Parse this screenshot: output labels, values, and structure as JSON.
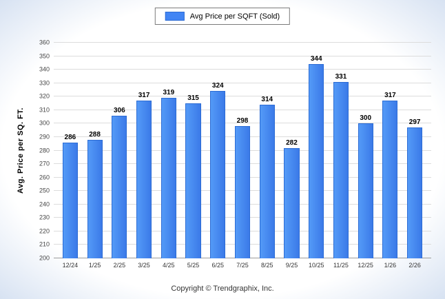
{
  "legend": {
    "label": "Avg Price per SQFT (Sold)",
    "swatch_color": "#4285f4"
  },
  "y_axis": {
    "title": "Avg. Price per SQ. FT.",
    "min": 200,
    "max": 360,
    "step": 10
  },
  "footer": {
    "text": "Copyright © Trendgraphix, Inc."
  },
  "chart_data": {
    "type": "bar",
    "title": "Avg Price per SQFT (Sold)",
    "categories": [
      "12/24",
      "1/25",
      "2/25",
      "3/25",
      "4/25",
      "5/25",
      "6/25",
      "7/25",
      "8/25",
      "9/25",
      "10/25",
      "11/25",
      "12/25",
      "1/26",
      "2/26"
    ],
    "values": [
      286,
      288,
      306,
      317,
      319,
      315,
      324,
      298,
      314,
      282,
      344,
      331,
      300,
      317,
      297
    ],
    "xlabel": "",
    "ylabel": "Avg. Price per SQ. FT.",
    "ylim": [
      200,
      360
    ],
    "ytick_step": 10,
    "grid": true,
    "legend_position": "top",
    "bar_color": "#4285f4",
    "bar_border_color": "#2b6bd4"
  }
}
